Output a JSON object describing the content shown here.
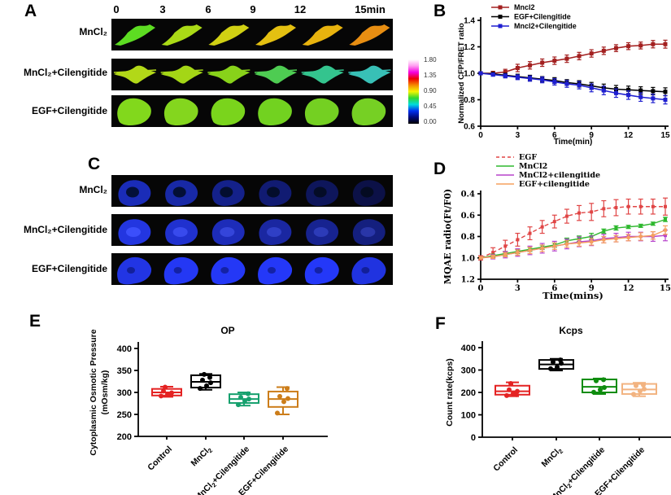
{
  "panelA": {
    "label": "A",
    "time_labels": [
      "0",
      "3",
      "6",
      "9",
      "12",
      "15min"
    ],
    "rows": [
      {
        "label": "MnCl₂",
        "shape": "pennant",
        "cell_colors": [
          "#5ddc22",
          "#aada16",
          "#d0d013",
          "#e4c011",
          "#e8b30e",
          "#e88e12"
        ],
        "cell_opacity": [
          1,
          1,
          1,
          1,
          1,
          1
        ]
      },
      {
        "label": "MnCl₂+Cilengitide",
        "shape": "swallow",
        "cell_colors": [
          "#b2d818",
          "#a4d616",
          "#88d21a",
          "#4ecc52",
          "#34c48e",
          "#38c0b6"
        ],
        "cell_opacity": [
          1,
          1,
          1,
          1,
          1,
          1
        ]
      },
      {
        "label": "EGF+Cilengitide",
        "shape": "fanblob",
        "cell_colors": [
          "#82d81c",
          "#84d61e",
          "#7ad41c",
          "#72d220",
          "#74d022",
          "#76d024"
        ],
        "cell_opacity": [
          1,
          1,
          1,
          1,
          1,
          1
        ]
      }
    ],
    "colorbar": {
      "labels": [
        "1.80",
        "1.35",
        "0.90",
        "0.45",
        "0.00"
      ],
      "stops": [
        "#ffffff",
        "#ff9cf0",
        "#f500e0",
        "#ee0000",
        "#f58a00",
        "#f5f500",
        "#30d830",
        "#00dcdc",
        "#0030f0",
        "#000a78",
        "#000000"
      ]
    }
  },
  "panelC": {
    "label": "C",
    "rows": [
      {
        "label": "MnCl₂",
        "shape": "ringcell",
        "cell_colors": [
          "#1a2cb8",
          "#1a2cb4",
          "#1828a8",
          "#16249c",
          "#142090",
          "#121c84"
        ],
        "cell_opacity": [
          1,
          0.92,
          0.82,
          0.72,
          0.62,
          0.52
        ]
      },
      {
        "label": "MnCl₂+Cilengitide",
        "shape": "brightcell",
        "cell_colors": [
          "#2336e0",
          "#2234da",
          "#2132d2",
          "#1f30c8",
          "#1e2ec0",
          "#1c2cb8"
        ],
        "cell_opacity": [
          1,
          0.95,
          0.88,
          0.8,
          0.74,
          0.68
        ]
      },
      {
        "label": "EGF+Cilengitide",
        "shape": "tricell",
        "cell_colors": [
          "#2438f0",
          "#2438f4",
          "#2438f6",
          "#2438f8",
          "#2438f8",
          "#2236ec"
        ],
        "cell_opacity": [
          0.95,
          1,
          1,
          1,
          1,
          0.95
        ]
      }
    ]
  },
  "chart_data": [
    {
      "id": "B",
      "panel_label": "B",
      "type": "line",
      "xlabel": "Time(min)",
      "ylabel": "Normalized CFP/FRET ratio",
      "x": [
        0,
        1,
        2,
        3,
        4,
        5,
        6,
        7,
        8,
        9,
        10,
        11,
        12,
        13,
        14,
        15
      ],
      "xticks": [
        "0",
        "3",
        "6",
        "9",
        "12",
        "15"
      ],
      "yticks": [
        "0.6",
        "0.8",
        "1.0",
        "1.2",
        "1.4"
      ],
      "ylim": [
        0.6,
        1.4
      ],
      "invert_y": false,
      "legend_position": "top-left",
      "series": [
        {
          "name": "Mncl2",
          "color": "#a32020",
          "dashed": false,
          "values": [
            1.0,
            1.0,
            1.01,
            1.04,
            1.06,
            1.08,
            1.095,
            1.11,
            1.13,
            1.15,
            1.17,
            1.19,
            1.205,
            1.21,
            1.22,
            1.22
          ],
          "errors": [
            0.012,
            0.015,
            0.02,
            0.028,
            0.028,
            0.028,
            0.028,
            0.028,
            0.028,
            0.028,
            0.028,
            0.026,
            0.026,
            0.026,
            0.028,
            0.03
          ]
        },
        {
          "name": "EGF+Cilengitide",
          "color": "#000000",
          "dashed": false,
          "values": [
            1.0,
            0.995,
            0.985,
            0.975,
            0.965,
            0.955,
            0.945,
            0.93,
            0.92,
            0.905,
            0.89,
            0.88,
            0.875,
            0.87,
            0.865,
            0.86
          ],
          "errors": [
            0.01,
            0.012,
            0.015,
            0.018,
            0.02,
            0.02,
            0.022,
            0.022,
            0.024,
            0.026,
            0.028,
            0.028,
            0.028,
            0.028,
            0.028,
            0.03
          ]
        },
        {
          "name": "Mncl2+Cilengitide",
          "color": "#1f1fd0",
          "dashed": false,
          "values": [
            1.0,
            0.99,
            0.98,
            0.97,
            0.96,
            0.95,
            0.935,
            0.92,
            0.91,
            0.89,
            0.87,
            0.85,
            0.835,
            0.82,
            0.81,
            0.8
          ],
          "errors": [
            0.01,
            0.012,
            0.015,
            0.018,
            0.02,
            0.022,
            0.024,
            0.026,
            0.028,
            0.03,
            0.032,
            0.032,
            0.032,
            0.032,
            0.032,
            0.032
          ]
        }
      ]
    },
    {
      "id": "D",
      "panel_label": "D",
      "type": "line",
      "xlabel": "Time(mins)",
      "ylabel": "MQAE radio(Ft/F0)",
      "x": [
        0,
        1,
        2,
        3,
        4,
        5,
        6,
        7,
        8,
        9,
        10,
        11,
        12,
        13,
        14,
        15
      ],
      "xticks": [
        "0",
        "3",
        "6",
        "9",
        "12",
        "15"
      ],
      "yticks": [
        "0.4",
        "0.6",
        "0.8",
        "1.0",
        "1.2"
      ],
      "ylim": [
        0.4,
        1.2
      ],
      "invert_y": true,
      "legend_position": "top-left",
      "series": [
        {
          "name": "EGF",
          "color": "#e04545",
          "dashed": true,
          "values": [
            1.0,
            0.95,
            0.89,
            0.83,
            0.77,
            0.71,
            0.66,
            0.61,
            0.58,
            0.57,
            0.54,
            0.53,
            0.52,
            0.52,
            0.52,
            0.52
          ],
          "errors": [
            0.02,
            0.045,
            0.055,
            0.06,
            0.06,
            0.06,
            0.06,
            0.065,
            0.07,
            0.08,
            0.075,
            0.075,
            0.07,
            0.07,
            0.07,
            0.08
          ]
        },
        {
          "name": "MnCl2",
          "color": "#2eb82e",
          "dashed": false,
          "values": [
            1.0,
            0.98,
            0.96,
            0.94,
            0.92,
            0.9,
            0.88,
            0.84,
            0.82,
            0.8,
            0.75,
            0.72,
            0.71,
            0.7,
            0.68,
            0.64
          ],
          "errors": [
            0.01,
            0.015,
            0.02,
            0.02,
            0.02,
            0.02,
            0.02,
            0.025,
            0.025,
            0.03,
            0.02,
            0.02,
            0.015,
            0.015,
            0.015,
            0.02
          ]
        },
        {
          "name": "MnCl2+cilengitide",
          "color": "#b743cc",
          "dashed": false,
          "values": [
            1.0,
            0.99,
            0.97,
            0.95,
            0.93,
            0.91,
            0.89,
            0.87,
            0.85,
            0.84,
            0.82,
            0.81,
            0.8,
            0.8,
            0.8,
            0.79
          ],
          "errors": [
            0.01,
            0.02,
            0.03,
            0.035,
            0.04,
            0.045,
            0.045,
            0.045,
            0.045,
            0.045,
            0.04,
            0.04,
            0.04,
            0.04,
            0.045,
            0.05
          ]
        },
        {
          "name": "EGF+cilengitide",
          "color": "#f5a05f",
          "dashed": false,
          "values": [
            1.0,
            0.99,
            0.97,
            0.95,
            0.93,
            0.91,
            0.89,
            0.87,
            0.86,
            0.85,
            0.83,
            0.82,
            0.81,
            0.8,
            0.79,
            0.74
          ],
          "errors": [
            0.01,
            0.015,
            0.02,
            0.025,
            0.03,
            0.03,
            0.03,
            0.03,
            0.03,
            0.03,
            0.03,
            0.03,
            0.03,
            0.035,
            0.035,
            0.04
          ]
        }
      ]
    },
    {
      "id": "E",
      "panel_label": "E",
      "type": "box",
      "title": "OP",
      "ylabel_lines": [
        "Cytoplasmic Osmotic Pressure",
        "(mOsm/kg)"
      ],
      "yticks": [
        "200",
        "250",
        "300",
        "350",
        "400"
      ],
      "ylim": [
        200,
        400
      ],
      "categories": [
        "Control",
        "MnCl₂",
        "MnCl₂+Cilengitide",
        "EGF+Cilengitide"
      ],
      "boxes": [
        {
          "color": "#e42222",
          "low": 290,
          "q1": 293,
          "median": 300,
          "q3": 308,
          "high": 313,
          "points": [
            292,
            296,
            299,
            303,
            295,
            312
          ]
        },
        {
          "color": "#000000",
          "low": 306,
          "q1": 311,
          "median": 324,
          "q3": 339,
          "high": 342,
          "points": [
            309,
            315,
            322,
            328,
            334,
            341
          ]
        },
        {
          "color": "#16a06e",
          "low": 270,
          "q1": 276,
          "median": 285,
          "q3": 296,
          "high": 300,
          "points": [
            272,
            281,
            285,
            289,
            297
          ]
        },
        {
          "color": "#cc7d1a",
          "low": 250,
          "q1": 267,
          "median": 285,
          "q3": 302,
          "high": 312,
          "points": [
            253,
            279,
            286,
            291,
            309
          ]
        }
      ]
    },
    {
      "id": "F",
      "panel_label": "F",
      "type": "box",
      "title": "Kcps",
      "ylabel_lines": [
        "Count rate(kcps)"
      ],
      "yticks": [
        "0",
        "100",
        "200",
        "300",
        "400"
      ],
      "ylim": [
        0,
        400
      ],
      "categories": [
        "Control",
        "MnCl₂",
        "MnCl₂+Cilengitide",
        "EGF+Cilengitide"
      ],
      "boxes": [
        {
          "color": "#e42222",
          "low": 183,
          "q1": 190,
          "median": 205,
          "q3": 230,
          "high": 245,
          "points": [
            186,
            196,
            205,
            212,
            190,
            240
          ]
        },
        {
          "color": "#000000",
          "low": 298,
          "q1": 305,
          "median": 325,
          "q3": 345,
          "high": 350,
          "points": [
            306,
            313,
            330,
            336,
            345
          ]
        },
        {
          "color": "#0e8c0e",
          "low": 193,
          "q1": 200,
          "median": 225,
          "q3": 258,
          "high": 262,
          "points": [
            201,
            212,
            222,
            252,
            257
          ]
        },
        {
          "color": "#f2b380",
          "low": 183,
          "q1": 193,
          "median": 213,
          "q3": 238,
          "high": 243,
          "points": [
            192,
            206,
            215,
            230,
            233
          ]
        }
      ]
    }
  ]
}
